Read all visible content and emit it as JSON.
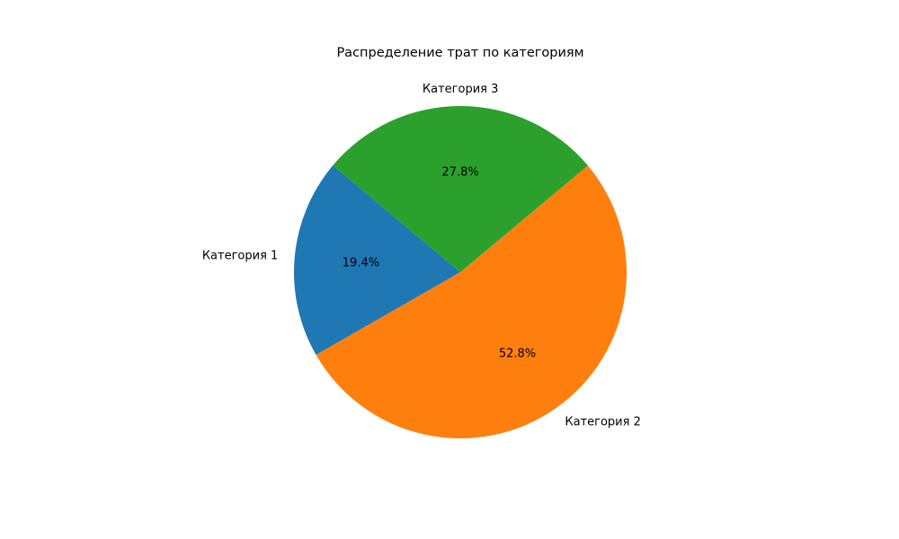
{
  "chart_data": {
    "type": "pie",
    "title": "Распределение трат по категориям",
    "categories": [
      "Категория 1",
      "Категория 2",
      "Категория 3"
    ],
    "values": [
      19.4,
      52.8,
      27.8
    ],
    "percent_labels": [
      "19.4%",
      "52.8%",
      "27.8%"
    ],
    "colors": [
      "#1f77b4",
      "#ff7f0e",
      "#2ca02c"
    ],
    "start_angle_deg": 140,
    "direction": "counterclockwise",
    "legend": "none"
  }
}
